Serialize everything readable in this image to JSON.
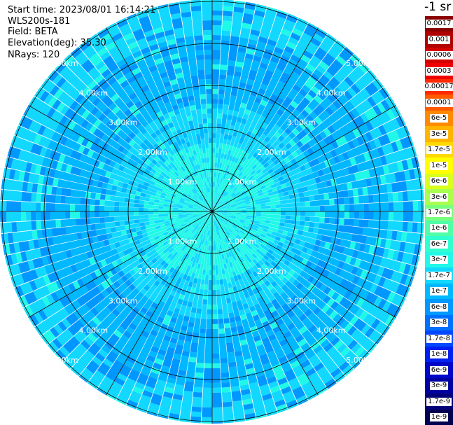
{
  "header": {
    "start_time": "Start time: 2023/08/01 16:14:21",
    "instrument": "WLS200s-181",
    "field": "Field: BETA",
    "elevation": "Elevation(deg): 35.30",
    "nrays": "NRays: 120"
  },
  "colorbar": {
    "unit": "-1 sr",
    "levels": [
      {
        "label": "0.0017",
        "color": "#8a0000"
      },
      {
        "label": "0.001",
        "color": "#b00000"
      },
      {
        "label": "0.0006",
        "color": "#d40000"
      },
      {
        "label": "0.0003",
        "color": "#f00000"
      },
      {
        "label": "0.00017",
        "color": "#ff2a00"
      },
      {
        "label": "0.0001",
        "color": "#ff5a00"
      },
      {
        "label": "6e-5",
        "color": "#ff8a00"
      },
      {
        "label": "3e-5",
        "color": "#ffb400"
      },
      {
        "label": "1.7e-5",
        "color": "#ffd800"
      },
      {
        "label": "1e-5",
        "color": "#ffff00"
      },
      {
        "label": "6e-6",
        "color": "#d8ff1e"
      },
      {
        "label": "3e-6",
        "color": "#a8ff4e"
      },
      {
        "label": "1.7e-6",
        "color": "#78ff7e"
      },
      {
        "label": "1e-6",
        "color": "#50ffa8"
      },
      {
        "label": "6e-7",
        "color": "#30ffd0"
      },
      {
        "label": "3e-7",
        "color": "#20f8e8"
      },
      {
        "label": "1.7e-7",
        "color": "#12d8ff"
      },
      {
        "label": "1e-7",
        "color": "#00b8ff"
      },
      {
        "label": "6e-8",
        "color": "#0098ff"
      },
      {
        "label": "3e-8",
        "color": "#0070ff"
      },
      {
        "label": "1.7e-8",
        "color": "#0048ff"
      },
      {
        "label": "1e-8",
        "color": "#0020f0"
      },
      {
        "label": "6e-9",
        "color": "#0008c8"
      },
      {
        "label": "3e-9",
        "color": "#0000a0"
      },
      {
        "label": "1.7e-9",
        "color": "#000078"
      },
      {
        "label": "1e-9",
        "color": "#000050"
      }
    ]
  },
  "chart_data": {
    "type": "heatmap",
    "title": "",
    "projection": "polar PPI scan",
    "nrays": 120,
    "range_rings": [
      {
        "label": "1.00km",
        "km": 1
      },
      {
        "label": "2.00km",
        "km": 2
      },
      {
        "label": "3.00km",
        "km": 3
      },
      {
        "label": "4.00km",
        "km": 4
      },
      {
        "label": "5.00km",
        "km": 5
      }
    ],
    "max_range_km": 5.05,
    "spokes_deg": [
      0,
      30,
      60,
      90,
      120,
      150,
      180,
      210,
      240,
      270,
      300,
      330
    ],
    "ring_label_bearings_deg": [
      45,
      135,
      225,
      315
    ],
    "value_bands": [
      {
        "range_km": [
          0.0,
          1.6
        ],
        "level": "3e-7",
        "alt_level": "1.7e-7"
      },
      {
        "range_km": [
          1.6,
          2.6
        ],
        "level": "1.7e-7",
        "alt_level": "1e-7"
      },
      {
        "range_km": [
          2.6,
          4.2
        ],
        "level": "1e-7",
        "alt_level": "6e-8"
      },
      {
        "range_km": [
          4.2,
          5.05
        ],
        "level": "1.7e-7",
        "alt_level": "6e-8"
      }
    ],
    "grid": true
  }
}
